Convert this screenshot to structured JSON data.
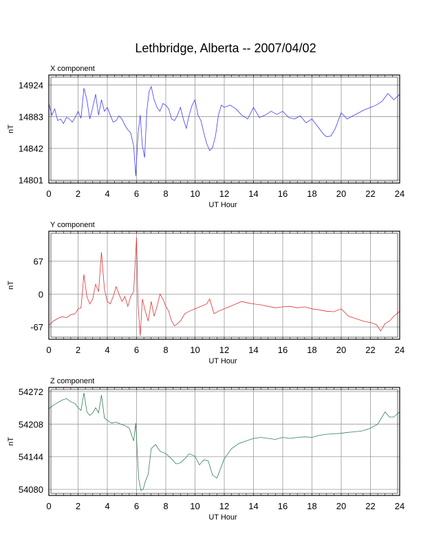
{
  "page_title": "Lethbridge, Alberta -- 2007/04/02",
  "chart_data": [
    {
      "type": "line",
      "panel_label": "X component",
      "xlabel": "UT Hour",
      "ylabel": "nT",
      "xlim": [
        0,
        24
      ],
      "ylim": [
        14797,
        14937
      ],
      "x_ticks": [
        0,
        2,
        4,
        6,
        8,
        10,
        12,
        14,
        16,
        18,
        20,
        22,
        24
      ],
      "y_ticks": [
        14801,
        14842,
        14883,
        14924
      ],
      "grid": true,
      "color": "#3b3bff",
      "series": [
        {
          "x": [
            0,
            0.2,
            0.4,
            0.6,
            0.8,
            1.0,
            1.2,
            1.4,
            1.6,
            1.8,
            2.0,
            2.2,
            2.4,
            2.6,
            2.8,
            3.0,
            3.2,
            3.4,
            3.6,
            3.8,
            4.0,
            4.2,
            4.4,
            4.6,
            4.8,
            5.0,
            5.2,
            5.4,
            5.6,
            5.8,
            5.95,
            6.1,
            6.25,
            6.4,
            6.55,
            6.7,
            6.85,
            7.0,
            7.2,
            7.4,
            7.6,
            7.8,
            8.0,
            8.2,
            8.4,
            8.6,
            8.8,
            9.0,
            9.2,
            9.4,
            9.6,
            9.8,
            10.0,
            10.2,
            10.4,
            10.6,
            10.8,
            11.0,
            11.2,
            11.4,
            11.6,
            11.8,
            12.0,
            12.4,
            12.8,
            13.2,
            13.6,
            14.0,
            14.4,
            14.8,
            15.2,
            15.6,
            16.0,
            16.4,
            16.8,
            17.2,
            17.6,
            18.0,
            18.4,
            18.8,
            19.0,
            19.3,
            19.6,
            20.0,
            20.4,
            20.8,
            21.2,
            21.6,
            22.0,
            22.4,
            22.8,
            23.2,
            23.6,
            24.0
          ],
          "y": [
            14900,
            14885,
            14893,
            14878,
            14880,
            14874,
            14882,
            14880,
            14876,
            14882,
            14890,
            14881,
            14920,
            14905,
            14880,
            14895,
            14912,
            14885,
            14905,
            14890,
            14895,
            14885,
            14876,
            14878,
            14884,
            14880,
            14872,
            14866,
            14862,
            14845,
            14806,
            14860,
            14885,
            14845,
            14830,
            14890,
            14915,
            14922,
            14905,
            14895,
            14890,
            14900,
            14898,
            14893,
            14880,
            14878,
            14885,
            14895,
            14880,
            14868,
            14885,
            14898,
            14905,
            14885,
            14878,
            14862,
            14848,
            14839,
            14843,
            14858,
            14885,
            14898,
            14895,
            14898,
            14893,
            14885,
            14880,
            14895,
            14882,
            14885,
            14890,
            14886,
            14890,
            14882,
            14880,
            14884,
            14875,
            14880,
            14870,
            14860,
            14857,
            14858,
            14868,
            14888,
            14880,
            14884,
            14888,
            14892,
            14895,
            14898,
            14903,
            14913,
            14905,
            14912
          ]
        }
      ]
    },
    {
      "type": "line",
      "panel_label": "Y component",
      "xlabel": "UT Hour",
      "ylabel": "nT",
      "xlim": [
        0,
        24
      ],
      "ylim": [
        -92,
        128
      ],
      "x_ticks": [
        0,
        2,
        4,
        6,
        8,
        10,
        12,
        14,
        16,
        18,
        20,
        22,
        24
      ],
      "y_ticks": [
        -67,
        0,
        67
      ],
      "grid": true,
      "color": "#e03030",
      "series": [
        {
          "x": [
            0,
            0.3,
            0.6,
            0.9,
            1.2,
            1.5,
            1.8,
            2.0,
            2.2,
            2.4,
            2.6,
            2.8,
            3.0,
            3.2,
            3.4,
            3.6,
            3.8,
            4.0,
            4.2,
            4.4,
            4.6,
            4.8,
            5.0,
            5.2,
            5.4,
            5.6,
            5.8,
            6.0,
            6.1,
            6.25,
            6.4,
            6.6,
            6.8,
            7.0,
            7.2,
            7.4,
            7.6,
            7.8,
            8.0,
            8.2,
            8.4,
            8.6,
            8.8,
            9.0,
            9.3,
            9.6,
            10.0,
            10.4,
            10.8,
            11.0,
            11.3,
            11.6,
            12.0,
            12.4,
            12.8,
            13.2,
            13.6,
            14.0,
            14.5,
            15.0,
            15.5,
            16.0,
            16.5,
            17.0,
            17.5,
            18.0,
            18.5,
            19.0,
            19.5,
            20.0,
            20.5,
            21.0,
            21.5,
            22.0,
            22.4,
            22.7,
            23.0,
            23.3,
            23.6,
            24.0
          ],
          "y": [
            -64,
            -55,
            -50,
            -46,
            -48,
            -42,
            -40,
            -30,
            -28,
            40,
            -5,
            -20,
            -10,
            20,
            5,
            85,
            10,
            -15,
            -20,
            -5,
            15,
            0,
            -15,
            -5,
            -25,
            -5,
            5,
            115,
            -20,
            -85,
            -10,
            -35,
            -55,
            -15,
            -45,
            -25,
            0,
            -10,
            -25,
            -35,
            -55,
            -65,
            -60,
            -55,
            -40,
            -35,
            -30,
            -25,
            -20,
            -10,
            -40,
            -35,
            -30,
            -25,
            -20,
            -15,
            -18,
            -20,
            -22,
            -25,
            -28,
            -26,
            -25,
            -28,
            -26,
            -30,
            -32,
            -35,
            -36,
            -30,
            -45,
            -50,
            -55,
            -58,
            -62,
            -75,
            -60,
            -55,
            -45,
            -35
          ]
        }
      ]
    },
    {
      "type": "line",
      "panel_label": "Z component",
      "xlabel": "UT Hour",
      "ylabel": "nT",
      "xlim": [
        0,
        24
      ],
      "ylim": [
        54068,
        54280
      ],
      "x_ticks": [
        0,
        2,
        4,
        6,
        8,
        10,
        12,
        14,
        16,
        18,
        20,
        22,
        24
      ],
      "y_ticks": [
        54080,
        54144,
        54208,
        54272
      ],
      "grid": true,
      "color": "#2f8050",
      "series": [
        {
          "x": [
            0,
            0.3,
            0.6,
            0.9,
            1.2,
            1.5,
            1.8,
            2.0,
            2.2,
            2.4,
            2.6,
            2.8,
            3.0,
            3.2,
            3.4,
            3.6,
            3.8,
            4.0,
            4.3,
            4.6,
            4.9,
            5.2,
            5.5,
            5.8,
            5.95,
            6.05,
            6.15,
            6.3,
            6.45,
            6.6,
            6.8,
            7.0,
            7.3,
            7.6,
            8.0,
            8.4,
            8.7,
            9.0,
            9.3,
            9.6,
            10.0,
            10.3,
            10.6,
            10.9,
            11.2,
            11.5,
            11.8,
            12.0,
            12.5,
            13.0,
            13.5,
            14.0,
            14.5,
            15.0,
            15.5,
            16.0,
            16.5,
            17.0,
            17.5,
            18.0,
            18.5,
            19.0,
            19.5,
            20.0,
            20.5,
            21.0,
            21.5,
            22.0,
            22.5,
            23.0,
            23.3,
            23.6,
            24.0
          ],
          "y": [
            54238,
            54245,
            54250,
            54255,
            54258,
            54252,
            54248,
            54240,
            54235,
            54269,
            54232,
            54225,
            54230,
            54240,
            54230,
            54265,
            54220,
            54215,
            54210,
            54212,
            54208,
            54205,
            54200,
            54175,
            54210,
            54150,
            54100,
            54078,
            54080,
            54095,
            54110,
            54160,
            54168,
            54155,
            54150,
            54140,
            54130,
            54132,
            54140,
            54150,
            54145,
            54128,
            54138,
            54136,
            54108,
            54102,
            54125,
            54140,
            54160,
            54170,
            54175,
            54180,
            54182,
            54180,
            54178,
            54182,
            54180,
            54182,
            54183,
            54182,
            54186,
            54188,
            54189,
            54190,
            54192,
            54193,
            54195,
            54200,
            54208,
            54232,
            54222,
            54222,
            54232
          ]
        }
      ]
    }
  ]
}
